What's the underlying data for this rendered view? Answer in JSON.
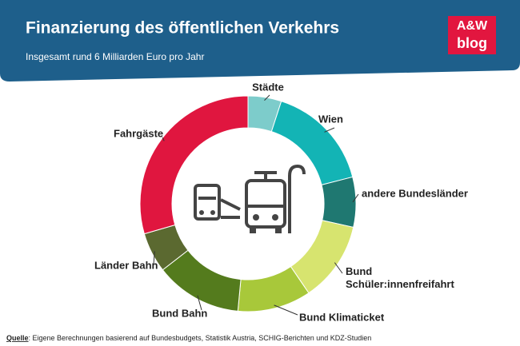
{
  "chart_data": {
    "type": "donut",
    "title": "Finanzierung des öffentlichen Verkehrs",
    "subtitle": "Insgesamt rund 6 Milliarden Euro pro Jahr",
    "logo": [
      "A&W",
      "blog"
    ],
    "source_label": "Quelle",
    "source": ": Eigene Berechnungen basierend auf Bundesbudgets, Statistik Austria, SCHIG-Berichten und KDZ-Studien",
    "categories": [
      "Städte",
      "Wien",
      "andere Bundesländer",
      "Bund Schüler:innenfreifahrt",
      "Bund Klimaticket",
      "Bund Bahn",
      "Länder Bahn",
      "Fahrgäste"
    ],
    "values": [
      5,
      16,
      7.5,
      12,
      11,
      13,
      6,
      29.5
    ],
    "colors": [
      "#7dcccb",
      "#13b4b5",
      "#1f7871",
      "#d7e46f",
      "#a8c83a",
      "#547b1d",
      "#5b6930",
      "#e0163f"
    ]
  }
}
